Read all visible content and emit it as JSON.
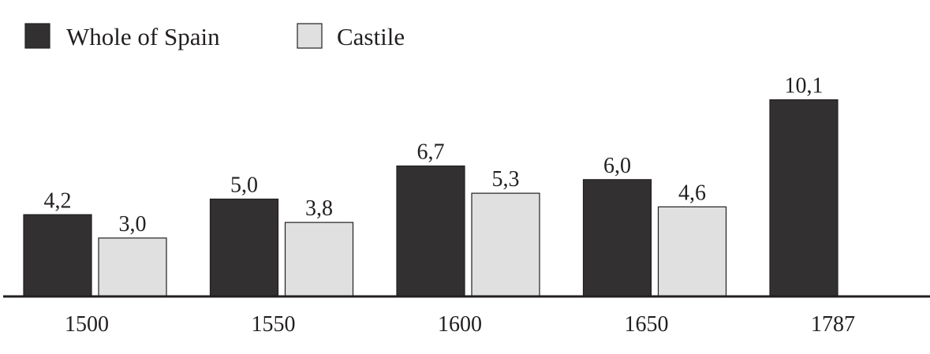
{
  "chart_data": {
    "type": "bar",
    "categories": [
      "1500",
      "1550",
      "1600",
      "1650",
      "1787"
    ],
    "series": [
      {
        "name": "Whole of Spain",
        "values": [
          4.2,
          5.0,
          6.7,
          6.0,
          10.1
        ],
        "labels": [
          "4,2",
          "5,0",
          "6,7",
          "6,0",
          "10,1"
        ],
        "color": "#333031"
      },
      {
        "name": "Castile",
        "values": [
          3.0,
          3.8,
          5.3,
          4.6,
          null
        ],
        "labels": [
          "3,0",
          "3,8",
          "5,3",
          "4,6",
          null
        ],
        "color": "#e0e0e0"
      }
    ],
    "title": "",
    "xlabel": "",
    "ylabel": "",
    "ylim": [
      0,
      12.4
    ],
    "grid": false,
    "legend": "top-left"
  }
}
